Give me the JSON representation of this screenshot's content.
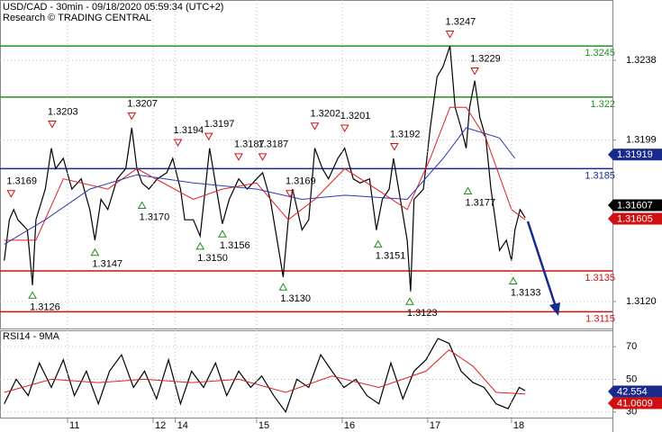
{
  "chart_data": [
    {
      "type": "line",
      "title": "USD/CAD - 30min - 09/18/2020 05:59:34 (UTC+2)",
      "subtitle": "Research © TRADING CENTRAL",
      "xlim": [
        0,
        7.16
      ],
      "ylim": [
        1.31068,
        1.32675
      ],
      "yticks": [
        {
          "value": 1.312,
          "label": "1.3120"
        },
        1.3199,
        1.3238
      ],
      "grid": true,
      "series": [
        {
          "color": "#000000",
          "x": [
            0.05,
            0.11,
            0.16,
            0.21,
            0.32,
            0.38,
            0.42,
            0.53,
            0.6,
            0.65,
            0.74,
            0.84,
            0.95,
            1.05,
            1.11,
            1.18,
            1.26,
            1.37,
            1.47,
            1.54,
            1.6,
            1.66,
            1.74,
            1.84,
            1.95,
            2.02,
            2.11,
            2.16,
            2.26,
            2.34,
            2.4,
            2.45,
            2.53,
            2.6,
            2.68,
            2.79,
            2.89,
            3.0,
            3.07,
            3.16,
            3.24,
            3.31,
            3.37,
            3.42,
            3.53,
            3.61,
            3.68,
            3.77,
            3.84,
            3.95,
            4.03,
            4.13,
            4.21,
            4.32,
            4.4,
            4.47,
            4.55,
            4.6,
            4.68,
            4.76,
            4.8,
            4.84,
            4.95,
            5.03,
            5.11,
            5.18,
            5.26,
            5.32,
            5.39,
            5.45,
            5.49,
            5.55,
            5.61,
            5.68,
            5.74,
            5.79,
            5.84,
            5.92,
            5.98,
            6.02,
            6.08,
            6.14
          ],
          "values": [
            1.314,
            1.316,
            1.3165,
            1.316,
            1.3155,
            1.3128,
            1.316,
            1.3175,
            1.3195,
            1.3185,
            1.319,
            1.3175,
            1.318,
            1.3165,
            1.315,
            1.317,
            1.3165,
            1.318,
            1.3185,
            1.3205,
            1.3185,
            1.3178,
            1.3175,
            1.318,
            1.3183,
            1.319,
            1.3175,
            1.316,
            1.316,
            1.3152,
            1.3175,
            1.3195,
            1.3175,
            1.3158,
            1.317,
            1.318,
            1.3175,
            1.318,
            1.3183,
            1.317,
            1.315,
            1.3132,
            1.316,
            1.3175,
            1.3155,
            1.316,
            1.3195,
            1.3185,
            1.318,
            1.319,
            1.3195,
            1.318,
            1.3178,
            1.318,
            1.3155,
            1.317,
            1.3175,
            1.319,
            1.317,
            1.315,
            1.3125,
            1.317,
            1.3175,
            1.3205,
            1.323,
            1.3235,
            1.3245,
            1.3215,
            1.3205,
            1.3195,
            1.3215,
            1.3228,
            1.321,
            1.32,
            1.3175,
            1.316,
            1.3145,
            1.315,
            1.314,
            1.3155,
            1.3165,
            1.3161
          ]
        },
        {
          "color": "#e02020",
          "x": [
            0.05,
            0.42,
            0.74,
            1.26,
            1.6,
            2.26,
            2.6,
            3.0,
            3.37,
            3.68,
            4.03,
            4.4,
            4.76,
            5.03,
            5.26,
            5.45,
            5.68,
            5.98,
            6.14
          ],
          "values": [
            1.315,
            1.315,
            1.318,
            1.3175,
            1.3185,
            1.317,
            1.3175,
            1.3178,
            1.316,
            1.317,
            1.3185,
            1.3175,
            1.3165,
            1.319,
            1.3215,
            1.3215,
            1.32,
            1.3165,
            1.316
          ]
        },
        {
          "color": "#2a3bb0",
          "x": [
            0.05,
            0.53,
            1.05,
            1.6,
            2.26,
            3.0,
            3.53,
            4.03,
            4.76,
            5.18,
            5.45,
            5.84,
            6.02
          ],
          "values": [
            1.3148,
            1.316,
            1.3175,
            1.3182,
            1.3178,
            1.3175,
            1.317,
            1.3172,
            1.317,
            1.319,
            1.3205,
            1.32,
            1.319
          ]
        }
      ],
      "levels": [
        {
          "value": 1.3245,
          "color": "#1f8f1f"
        },
        {
          "value": 1.322,
          "color": "#1f8f1f"
        },
        {
          "value": 1.3185,
          "color": "#1a2a8c"
        },
        {
          "value": 1.3135,
          "color": "#d01010"
        },
        {
          "value": 1.3115,
          "color": "#d01010"
        }
      ],
      "price_labels": [
        {
          "value": 1.31919,
          "color": "#1a2a8c"
        },
        {
          "value": 1.31605,
          "color": "#d01010"
        },
        {
          "value": 1.31607,
          "color": "#000000"
        }
      ],
      "annotations": [
        {
          "kind": "high",
          "x": 0.13,
          "value": 1.3169,
          "label": "1.3169"
        },
        {
          "kind": "high",
          "x": 0.61,
          "value": 1.3203,
          "label": "1.3203"
        },
        {
          "kind": "high",
          "x": 1.54,
          "value": 1.3207,
          "label": "1.3207"
        },
        {
          "kind": "high",
          "x": 2.08,
          "value": 1.3194,
          "label": "1.3194"
        },
        {
          "kind": "high",
          "x": 2.44,
          "value": 1.3197,
          "label": "1.3197"
        },
        {
          "kind": "high",
          "x": 2.79,
          "value": 1.3187,
          "label": "1.3187"
        },
        {
          "kind": "high",
          "x": 3.07,
          "value": 1.3187,
          "label": "1.3187"
        },
        {
          "kind": "high",
          "x": 3.39,
          "value": 1.3169,
          "label": "1.3169"
        },
        {
          "kind": "high",
          "x": 3.68,
          "value": 1.3202,
          "label": "1.3202"
        },
        {
          "kind": "high",
          "x": 4.03,
          "value": 1.3201,
          "label": "1.3201"
        },
        {
          "kind": "high",
          "x": 4.61,
          "value": 1.3192,
          "label": "1.3192"
        },
        {
          "kind": "high",
          "x": 5.26,
          "value": 1.3247,
          "label": "1.3247"
        },
        {
          "kind": "high",
          "x": 5.55,
          "value": 1.3229,
          "label": "1.3229"
        },
        {
          "kind": "low",
          "x": 0.38,
          "value": 1.3126,
          "label": "1.3126"
        },
        {
          "kind": "low",
          "x": 1.11,
          "value": 1.3147,
          "label": "1.3147"
        },
        {
          "kind": "low",
          "x": 1.66,
          "value": 1.317,
          "label": "1.3170"
        },
        {
          "kind": "low",
          "x": 2.34,
          "value": 1.315,
          "label": "1.3150"
        },
        {
          "kind": "low",
          "x": 2.6,
          "value": 1.3156,
          "label": "1.3156"
        },
        {
          "kind": "low",
          "x": 3.31,
          "value": 1.313,
          "label": "1.3130"
        },
        {
          "kind": "low",
          "x": 4.42,
          "value": 1.3151,
          "label": "1.3151"
        },
        {
          "kind": "low",
          "x": 4.79,
          "value": 1.3123,
          "label": "1.3123"
        },
        {
          "kind": "low",
          "x": 5.47,
          "value": 1.3177,
          "label": "1.3177"
        },
        {
          "kind": "low",
          "x": 6.0,
          "value": 1.3133,
          "label": "1.3133"
        }
      ]
    },
    {
      "type": "line",
      "title": "RSI14 - 9MA",
      "xlim": [
        0,
        7.16
      ],
      "xticks": [
        {
          "value": 0.79,
          "label": "11"
        },
        {
          "value": 1.79,
          "label": "12"
        },
        {
          "value": 2.05,
          "label": "14"
        },
        {
          "value": 3.0,
          "label": "15"
        },
        {
          "value": 4.0,
          "label": "16"
        },
        {
          "value": 5.0,
          "label": "17"
        },
        {
          "value": 5.98,
          "label": "18"
        }
      ],
      "ylim": [
        26,
        80
      ],
      "yticks": [
        30,
        50,
        70
      ],
      "grid": true,
      "series": [
        {
          "color": "#000000",
          "x": [
            0.05,
            0.19,
            0.33,
            0.46,
            0.6,
            0.74,
            0.87,
            1.01,
            1.15,
            1.28,
            1.42,
            1.56,
            1.69,
            1.83,
            1.97,
            2.11,
            2.24,
            2.38,
            2.52,
            2.65,
            2.79,
            2.93,
            3.06,
            3.2,
            3.34,
            3.47,
            3.61,
            3.75,
            3.88,
            4.02,
            4.16,
            4.29,
            4.43,
            4.57,
            4.71,
            4.84,
            4.98,
            5.12,
            5.25,
            5.39,
            5.53,
            5.66,
            5.8,
            5.94,
            6.07,
            6.14
          ],
          "values": [
            35,
            50,
            40,
            60,
            45,
            62,
            40,
            55,
            35,
            55,
            65,
            45,
            55,
            38,
            62,
            35,
            55,
            45,
            60,
            40,
            55,
            45,
            52,
            40,
            30,
            50,
            45,
            65,
            55,
            45,
            50,
            40,
            35,
            60,
            38,
            55,
            62,
            75,
            72,
            55,
            48,
            45,
            35,
            32,
            45,
            43
          ]
        },
        {
          "color": "#e02020",
          "x": [
            0.05,
            0.6,
            1.15,
            1.69,
            2.24,
            2.79,
            3.34,
            3.88,
            4.43,
            4.98,
            5.25,
            5.53,
            5.8,
            6.14
          ],
          "values": [
            42,
            50,
            48,
            50,
            48,
            50,
            42,
            52,
            45,
            55,
            68,
            58,
            42,
            41
          ]
        }
      ],
      "price_labels": [
        {
          "value": 42.554,
          "color": "#1a2a8c"
        },
        {
          "value": 41.0609,
          "color": "#d01010"
        }
      ]
    }
  ]
}
